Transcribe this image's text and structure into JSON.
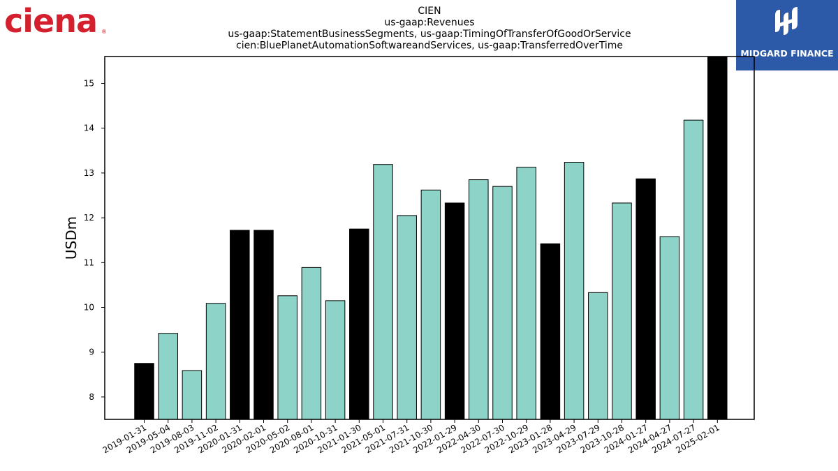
{
  "logos": {
    "left_text": "ciena",
    "left_registered": "®",
    "left_color": "#d4202e",
    "right_text": "MIDGARD FINANCE",
    "right_bg": "#2c5aa8"
  },
  "chart_data": {
    "type": "bar",
    "title_lines": [
      "CIEN",
      "us-gaap:Revenues",
      "us-gaap:StatementBusinessSegments, us-gaap:TimingOfTransferOfGoodOrService",
      "cien:BluePlanetAutomationSoftwareandServices, us-gaap:TransferredOverTime"
    ],
    "xlabel": "",
    "ylabel": "USDm",
    "ylim": [
      7.5,
      15.6
    ],
    "yticks": [
      8,
      9,
      10,
      11,
      12,
      13,
      14,
      15
    ],
    "categories": [
      "2019-01-31",
      "2019-05-04",
      "2019-08-03",
      "2019-11-02",
      "2020-01-31",
      "2020-02-01",
      "2020-05-02",
      "2020-08-01",
      "2020-10-31",
      "2021-01-30",
      "2021-05-01",
      "2021-07-31",
      "2021-10-30",
      "2022-01-29",
      "2022-04-30",
      "2022-07-30",
      "2022-10-29",
      "2023-01-28",
      "2023-04-29",
      "2023-07-29",
      "2023-10-28",
      "2024-01-27",
      "2024-04-27",
      "2024-07-27",
      "2025-02-01"
    ],
    "values": [
      8.75,
      9.42,
      8.59,
      10.09,
      11.72,
      11.72,
      10.26,
      10.89,
      10.15,
      11.75,
      13.19,
      12.05,
      12.62,
      12.33,
      12.85,
      12.7,
      13.13,
      11.42,
      13.24,
      10.33,
      12.33,
      12.87,
      11.58,
      14.18,
      15.6
    ],
    "bar_colors": [
      "#000000",
      "#8dd3c7",
      "#8dd3c7",
      "#8dd3c7",
      "#000000",
      "#000000",
      "#8dd3c7",
      "#8dd3c7",
      "#8dd3c7",
      "#000000",
      "#8dd3c7",
      "#8dd3c7",
      "#8dd3c7",
      "#000000",
      "#8dd3c7",
      "#8dd3c7",
      "#8dd3c7",
      "#000000",
      "#8dd3c7",
      "#8dd3c7",
      "#8dd3c7",
      "#000000",
      "#8dd3c7",
      "#8dd3c7",
      "#000000"
    ],
    "grid": false,
    "legend": "none"
  }
}
